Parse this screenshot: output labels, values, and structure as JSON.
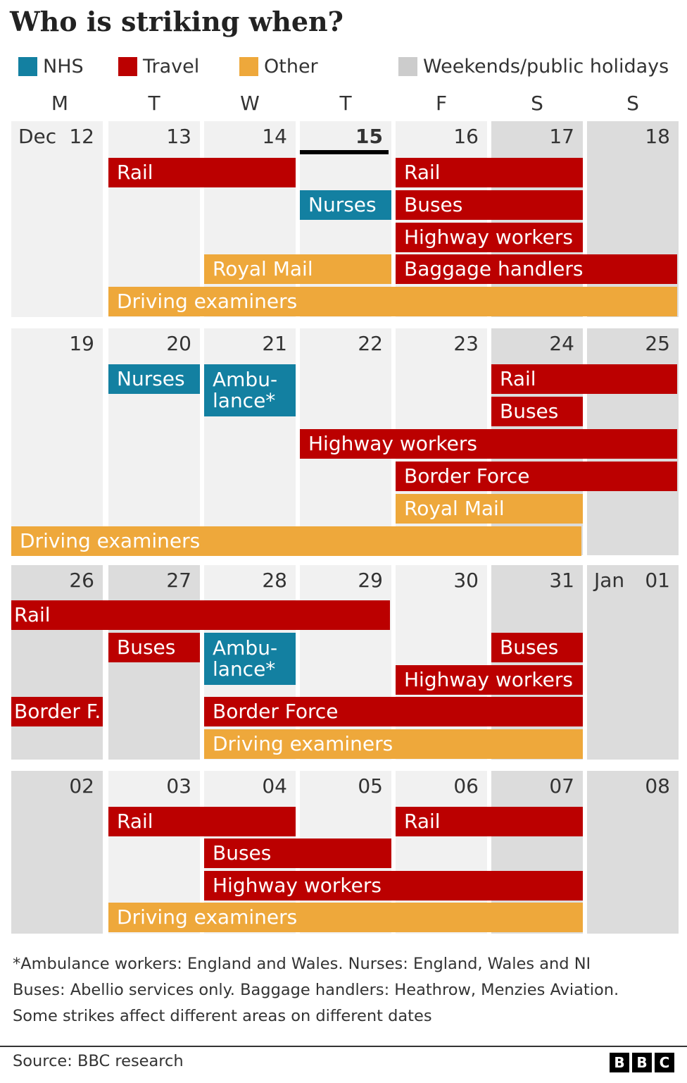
{
  "title": "Who is striking when?",
  "legend": [
    {
      "label": "NHS",
      "color": "#1380a1"
    },
    {
      "label": "Travel",
      "color": "#bb0000"
    },
    {
      "label": "Other",
      "color": "#eea83b"
    },
    {
      "label": "Weekends/public holidays",
      "color": "#cccccc"
    }
  ],
  "weekdays": [
    "M",
    "T",
    "W",
    "T",
    "F",
    "S",
    "S"
  ],
  "colors": {
    "nhs": "#1380a1",
    "travel": "#bb0000",
    "other": "#eea83b",
    "weekday_cell": "#f1f1f1",
    "holiday_cell": "#dcdcdc"
  },
  "chart_data": {
    "type": "table",
    "weeks": [
      {
        "days": [
          "12",
          "13",
          "14",
          "15",
          "16",
          "17",
          "18"
        ],
        "month_label": "Dec",
        "today_index": 3,
        "holidays": [
          5,
          6
        ],
        "strikes": [
          {
            "label": "Rail",
            "category": "travel",
            "start": 1,
            "end": 2,
            "row": 0
          },
          {
            "label": "Rail",
            "category": "travel",
            "start": 4,
            "end": 5,
            "row": 0
          },
          {
            "label": "Nurses",
            "category": "nhs",
            "start": 3,
            "end": 3,
            "row": 1
          },
          {
            "label": "Buses",
            "category": "travel",
            "start": 4,
            "end": 5,
            "row": 1
          },
          {
            "label": "Highway workers",
            "category": "travel",
            "start": 4,
            "end": 5,
            "row": 2
          },
          {
            "label": "Royal Mail",
            "category": "other",
            "start": 2,
            "end": 3,
            "row": 3
          },
          {
            "label": "Baggage handlers",
            "category": "travel",
            "start": 4,
            "end": 6,
            "row": 3
          },
          {
            "label": "Driving examiners",
            "category": "other",
            "start": 1,
            "end": 6,
            "row": 4
          }
        ]
      },
      {
        "days": [
          "19",
          "20",
          "21",
          "22",
          "23",
          "24",
          "25"
        ],
        "holidays": [
          5,
          6
        ],
        "strikes": [
          {
            "label": "Nurses",
            "category": "nhs",
            "start": 1,
            "end": 1,
            "row": 0
          },
          {
            "label": "Ambu-\nlance*",
            "category": "nhs",
            "start": 2,
            "end": 2,
            "row": 0,
            "rows": 2
          },
          {
            "label": "Rail",
            "category": "travel",
            "start": 5,
            "end": 6,
            "row": 0
          },
          {
            "label": "Buses",
            "category": "travel",
            "start": 5,
            "end": 5,
            "row": 1
          },
          {
            "label": "Highway workers",
            "category": "travel",
            "start": 3,
            "end": 6,
            "row": 2
          },
          {
            "label": "Border Force",
            "category": "travel",
            "start": 4,
            "end": 6,
            "row": 3
          },
          {
            "label": "Royal Mail",
            "category": "other",
            "start": 4,
            "end": 5,
            "row": 4
          },
          {
            "label": "Driving examiners",
            "category": "other",
            "start": 0,
            "end": 5,
            "row": 5
          }
        ]
      },
      {
        "days": [
          "26",
          "27",
          "28",
          "29",
          "30",
          "31",
          "01"
        ],
        "month_label_index": 6,
        "month_label": "Jan",
        "holidays": [
          0,
          1,
          5,
          6
        ],
        "strikes": [
          {
            "label": "Rail",
            "category": "travel",
            "start": 0,
            "end": 3,
            "row": 0
          },
          {
            "label": "Buses",
            "category": "travel",
            "start": 1,
            "end": 1,
            "row": 1
          },
          {
            "label": "Ambu-\nlance*",
            "category": "nhs",
            "start": 2,
            "end": 2,
            "row": 1,
            "rows": 2
          },
          {
            "label": "Buses",
            "category": "travel",
            "start": 5,
            "end": 5,
            "row": 1
          },
          {
            "label": "Highway workers",
            "category": "travel",
            "start": 4,
            "end": 5,
            "row": 2
          },
          {
            "label": "Border F.",
            "category": "travel",
            "start": 0,
            "end": 0,
            "row": 3
          },
          {
            "label": "Border Force",
            "category": "travel",
            "start": 2,
            "end": 5,
            "row": 3
          },
          {
            "label": "Driving examiners",
            "category": "other",
            "start": 2,
            "end": 5,
            "row": 4
          }
        ]
      },
      {
        "days": [
          "02",
          "03",
          "04",
          "05",
          "06",
          "07",
          "08"
        ],
        "holidays": [
          0,
          5,
          6
        ],
        "strikes": [
          {
            "label": "Rail",
            "category": "travel",
            "start": 1,
            "end": 2,
            "row": 0
          },
          {
            "label": "Rail",
            "category": "travel",
            "start": 4,
            "end": 5,
            "row": 0
          },
          {
            "label": "Buses",
            "category": "travel",
            "start": 2,
            "end": 3,
            "row": 1
          },
          {
            "label": "Highway workers",
            "category": "travel",
            "start": 2,
            "end": 5,
            "row": 2
          },
          {
            "label": "Driving examiners",
            "category": "other",
            "start": 1,
            "end": 5,
            "row": 3
          }
        ]
      }
    ]
  },
  "notes": [
    "*Ambulance workers: England and Wales. Nurses: England, Wales and NI",
    "Buses: Abellio services only. Baggage handlers: Heathrow, Menzies Aviation.",
    "Some strikes affect different areas on different dates"
  ],
  "source": "Source: BBC research",
  "logo_letters": [
    "B",
    "B",
    "C"
  ]
}
